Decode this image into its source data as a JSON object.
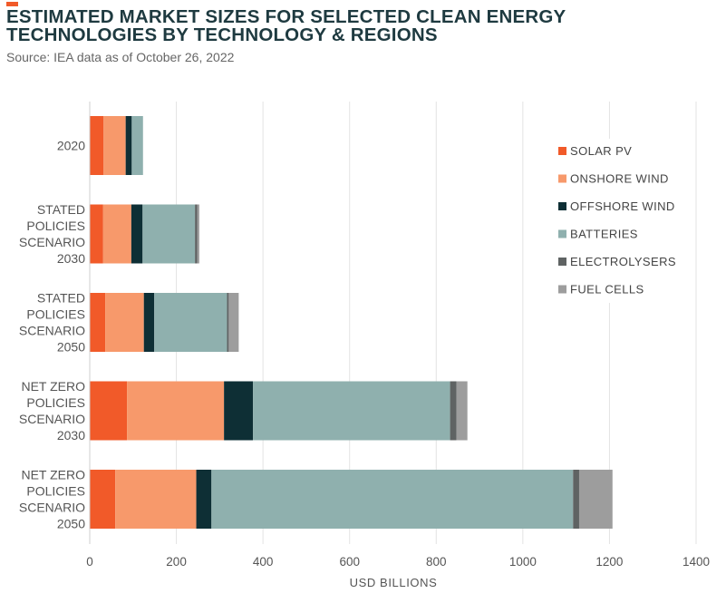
{
  "header": {
    "title": "ESTIMATED MARKET SIZES FOR SELECTED CLEAN ENERGY TECHNOLOGIES BY TECHNOLOGY & REGIONS",
    "subtitle": "Source: IEA data as of October 26, 2022"
  },
  "colors": {
    "accent": "#f15a29",
    "title": "#1e3a40"
  },
  "chart_data": {
    "type": "bar",
    "orientation": "horizontal",
    "stacked": true,
    "categories": [
      [
        "2020"
      ],
      [
        "STATED",
        "POLICIES",
        "SCENARIO",
        "2030"
      ],
      [
        "STATED",
        "POLICIES",
        "SCENARIO",
        "2050"
      ],
      [
        "NET ZERO",
        "POLICIES",
        "SCENARIO",
        "2030"
      ],
      [
        "NET ZERO",
        "POLICIES",
        "SCENARIO",
        "2050"
      ]
    ],
    "series": [
      {
        "name": "SOLAR PV",
        "color": "#f15a29",
        "values": [
          32,
          31,
          36,
          86,
          59
        ]
      },
      {
        "name": "ONSHORE WIND",
        "color": "#f7996b",
        "values": [
          51,
          65,
          89,
          224,
          187
        ]
      },
      {
        "name": "OFFSHORE WIND",
        "color": "#0e2f35",
        "values": [
          14,
          26,
          24,
          67,
          35
        ]
      },
      {
        "name": "BATTERIES",
        "color": "#8fb0ae",
        "values": [
          26,
          121,
          168,
          455,
          835
        ]
      },
      {
        "name": "ELECTROLYSERS",
        "color": "#5f6363",
        "values": [
          0,
          5,
          4,
          15,
          14
        ]
      },
      {
        "name": "FUEL CELLS",
        "color": "#9d9d9d",
        "values": [
          0,
          5,
          23,
          25,
          77
        ]
      }
    ],
    "xlim": [
      0,
      1400
    ],
    "xticks": [
      0,
      200,
      400,
      600,
      800,
      1000,
      1200,
      1400
    ],
    "xlabel": "USD BILLIONS",
    "ylabel": "",
    "grid": "vertical",
    "legend_position": "top-right"
  }
}
